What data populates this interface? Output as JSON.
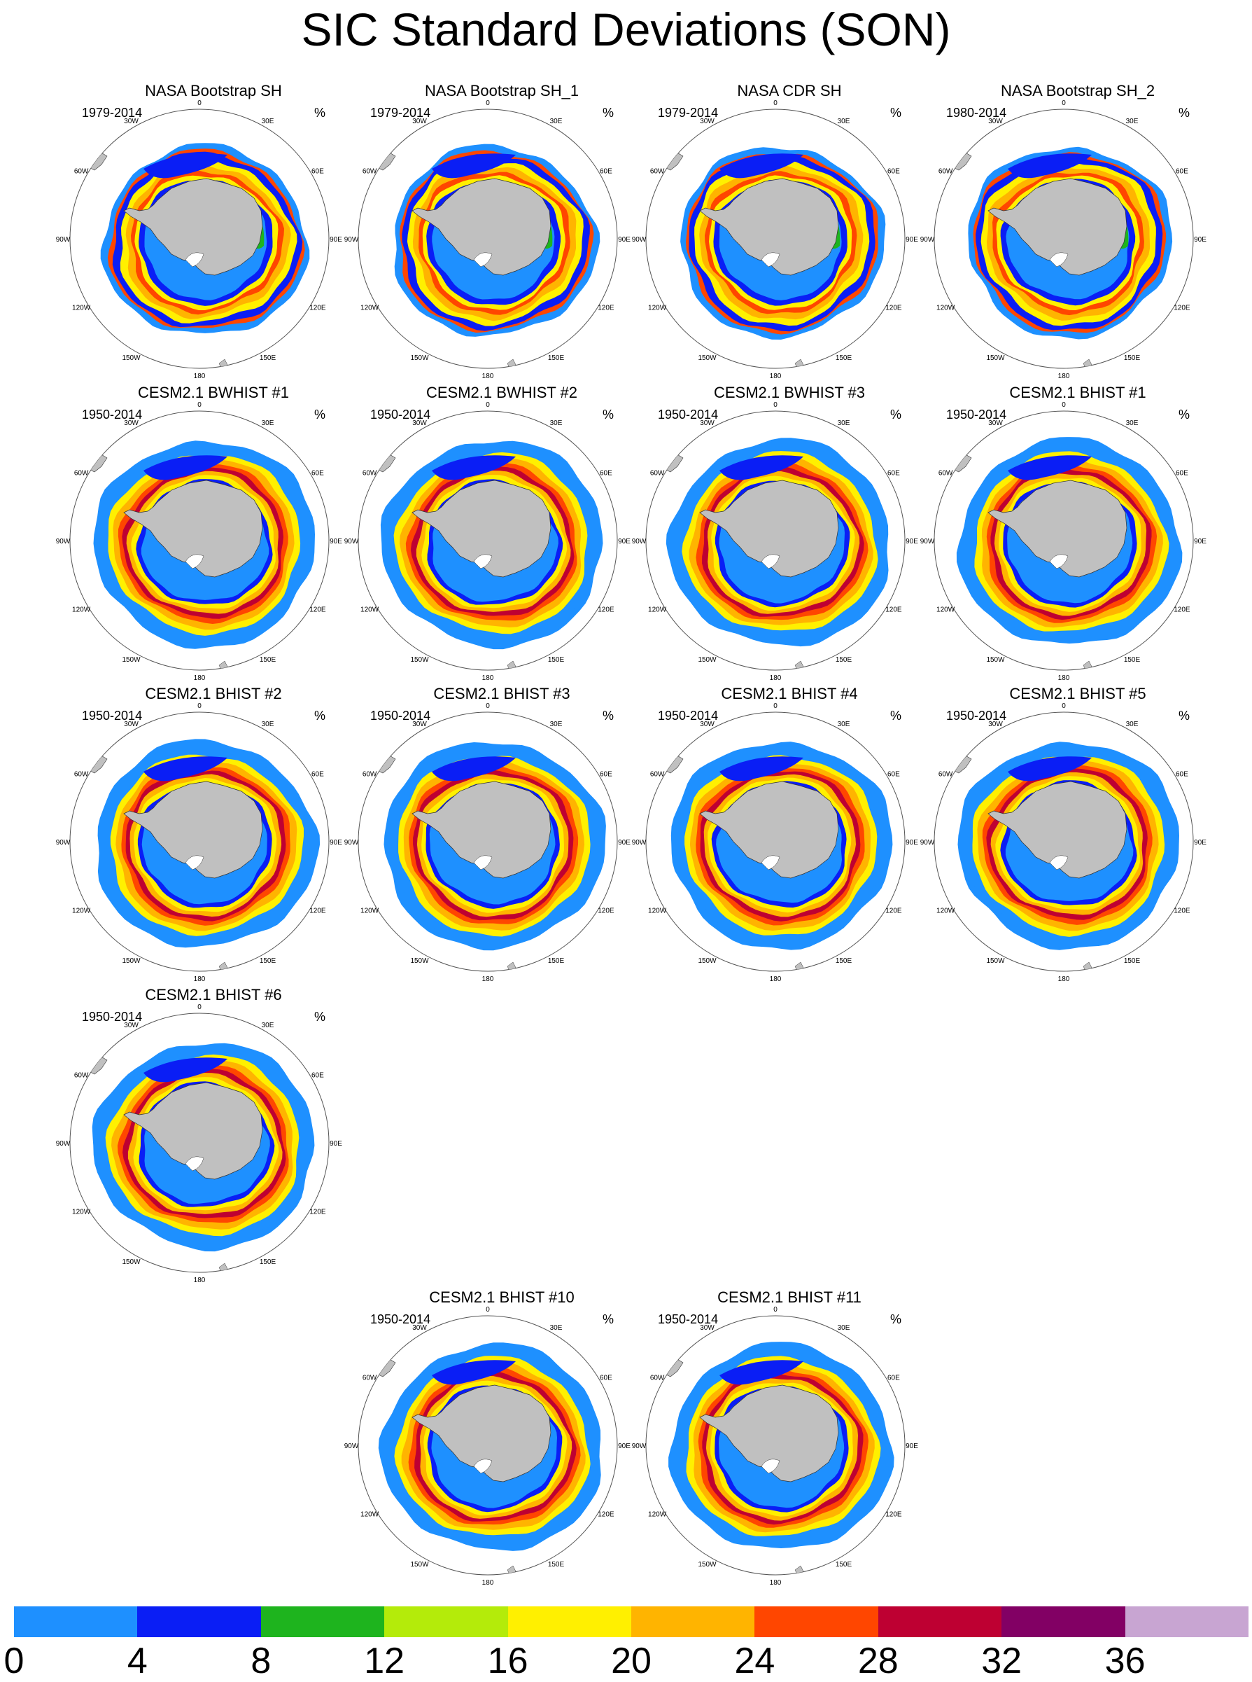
{
  "title": "SIC Standard Deviations (SON)",
  "units": "%",
  "longitude_labels": [
    "0",
    "30E",
    "60E",
    "90E",
    "120E",
    "150E",
    "180",
    "150W",
    "120W",
    "90W",
    "60W",
    "30W"
  ],
  "panels": [
    {
      "title": "NASA Bootstrap SH",
      "period": "1979-2014",
      "style": "obs"
    },
    {
      "title": "NASA Bootstrap SH_1",
      "period": "1979-2014",
      "style": "obs"
    },
    {
      "title": "NASA CDR SH",
      "period": "1979-2014",
      "style": "obs"
    },
    {
      "title": "NASA Bootstrap SH_2",
      "period": "1980-2014",
      "style": "obs"
    },
    {
      "title": "CESM2.1 BWHIST #1",
      "period": "1950-2014",
      "style": "model"
    },
    {
      "title": "CESM2.1 BWHIST #2",
      "period": "1950-2014",
      "style": "model"
    },
    {
      "title": "CESM2.1 BWHIST #3",
      "period": "1950-2014",
      "style": "model"
    },
    {
      "title": "CESM2.1 BHIST #1",
      "period": "1950-2014",
      "style": "model"
    },
    {
      "title": "CESM2.1 BHIST #2",
      "period": "1950-2014",
      "style": "model"
    },
    {
      "title": "CESM2.1 BHIST #3",
      "period": "1950-2014",
      "style": "model"
    },
    {
      "title": "CESM2.1 BHIST #4",
      "period": "1950-2014",
      "style": "model"
    },
    {
      "title": "CESM2.1 BHIST #5",
      "period": "1950-2014",
      "style": "model"
    },
    {
      "title": "CESM2.1 BHIST #6",
      "period": "1950-2014",
      "style": "model"
    },
    {
      "title": "CESM2.1 BHIST #10",
      "period": "1950-2014",
      "style": "model"
    },
    {
      "title": "CESM2.1 BHIST #11",
      "period": "1950-2014",
      "style": "model"
    }
  ],
  "colorbar": {
    "labels": [
      "0",
      "4",
      "8",
      "12",
      "16",
      "20",
      "24",
      "28",
      "32",
      "36"
    ],
    "colors": [
      "#1e90ff",
      "#0a1ef5",
      "#1eb41e",
      "#b4eb0a",
      "#fff000",
      "#ffb400",
      "#ff4600",
      "#be0032",
      "#820064",
      "#c8a5d2"
    ]
  }
}
